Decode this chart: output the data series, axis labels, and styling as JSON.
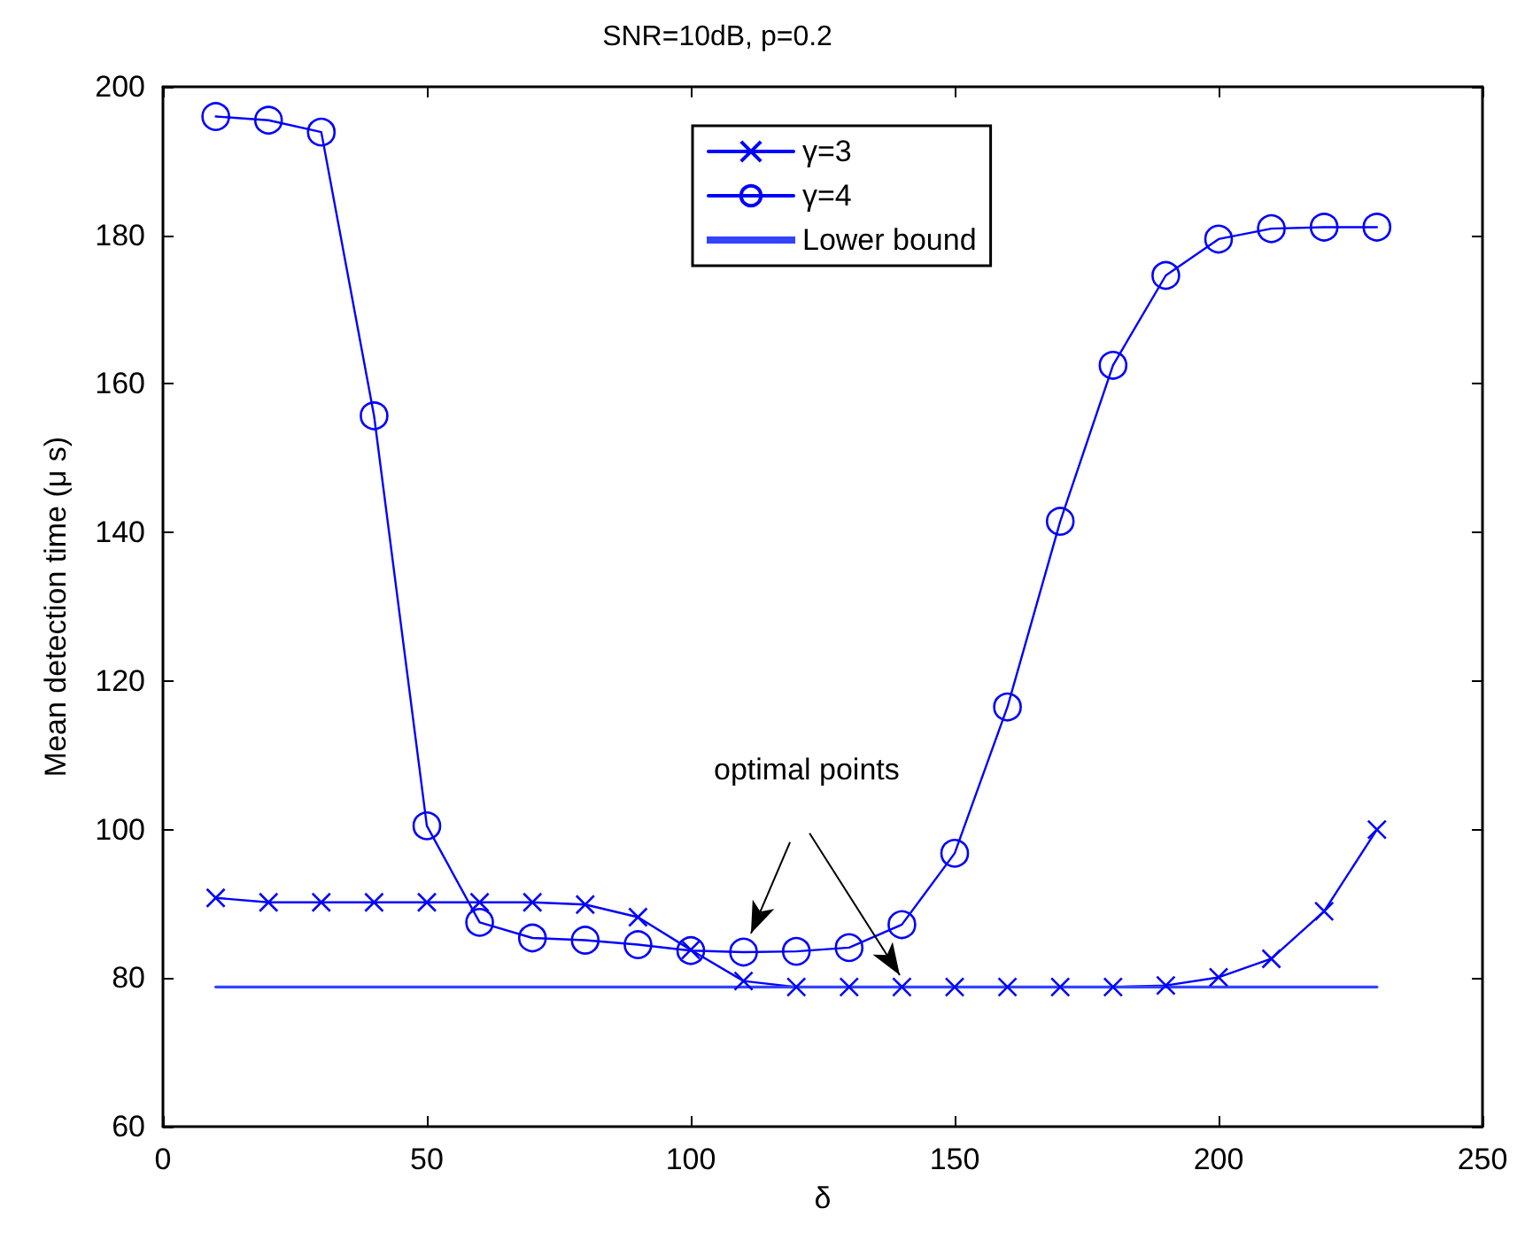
{
  "chart_data": {
    "type": "line",
    "title": "SNR=10dB, p=0.2",
    "xlabel": "δ",
    "ylabel": "Mean detection time (μ s)",
    "annotations": [
      "optimal points"
    ],
    "x": [
      10,
      20,
      30,
      40,
      50,
      60,
      70,
      80,
      90,
      100,
      110,
      120,
      130,
      140,
      150,
      160,
      170,
      180,
      190,
      200,
      210,
      220,
      230
    ],
    "series": [
      {
        "name": "γ=3",
        "color": "#0000ff",
        "marker": "cross",
        "values": [
          90.8,
          90.2,
          90.2,
          90.2,
          90.2,
          90.2,
          90.2,
          89.9,
          88.2,
          83.8,
          79.6,
          78.8,
          78.8,
          78.8,
          78.8,
          78.8,
          78.8,
          78.8,
          79,
          80.1,
          82.6,
          89,
          100
        ]
      },
      {
        "name": "γ=4",
        "color": "#0000ff",
        "marker": "circle",
        "values": [
          196,
          195.5,
          193.9,
          155.7,
          100.5,
          87.5,
          85.4,
          85.1,
          84.5,
          83.7,
          83.5,
          83.6,
          84.1,
          87.2,
          96.8,
          116.5,
          141.5,
          162.5,
          174.6,
          179.5,
          180.9,
          181.1,
          181.1
        ]
      },
      {
        "name": "Lower bound",
        "color": "#3344ff",
        "marker": "none",
        "x": [
          10,
          230
        ],
        "values": [
          78.8,
          78.8
        ]
      }
    ],
    "xlim": [
      0,
      250
    ],
    "xticks": [
      0,
      50,
      100,
      150,
      200,
      250
    ],
    "ylim": [
      60,
      200
    ],
    "yticks": [
      60,
      80,
      100,
      120,
      140,
      160,
      180,
      200
    ],
    "grid": false,
    "legend": "top",
    "line_style": "solid"
  }
}
